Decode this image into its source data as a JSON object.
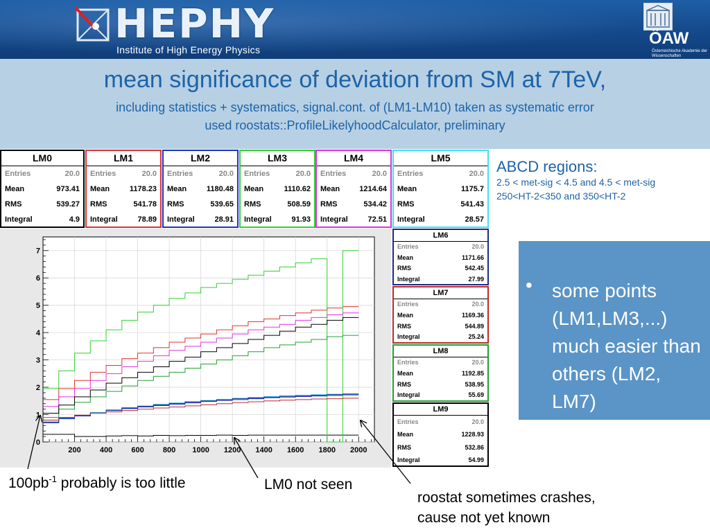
{
  "header": {
    "logo_text": "HEPHY",
    "logo_subtitle": "Institute of High Energy Physics",
    "oaw_text": "ÖAW",
    "oaw_subtitle": "Österreichische Akademie der Wissenschaften"
  },
  "title": "mean significance of deviation from SM at 7TeV,",
  "subtitle_line1": "including statistics + systematics, signal.cont. of (LM1-LM10) taken as systematic error",
  "subtitle_line2": "used roostats::ProfileLikelyhoodCalculator, preliminary",
  "stat_boxes": [
    {
      "name": "LM0",
      "color": "#000000",
      "entries": "20.0",
      "mean": "973.41",
      "rms": "539.27",
      "integral": "4.9"
    },
    {
      "name": "LM1",
      "color": "#e03030",
      "entries": "20.0",
      "mean": "1178.23",
      "rms": "541.78",
      "integral": "78.89"
    },
    {
      "name": "LM2",
      "color": "#2030c8",
      "entries": "20.0",
      "mean": "1180.48",
      "rms": "539.65",
      "integral": "28.91"
    },
    {
      "name": "LM3",
      "color": "#30d030",
      "entries": "20.0",
      "mean": "1110.62",
      "rms": "508.59",
      "integral": "91.93"
    },
    {
      "name": "LM4",
      "color": "#e030e0",
      "entries": "20.0",
      "mean": "1214.64",
      "rms": "534.42",
      "integral": "72.51"
    },
    {
      "name": "LM5",
      "color": "#40e0f0",
      "entries": "20.0",
      "mean": "1175.7",
      "rms": "541.43",
      "integral": "28.57"
    },
    {
      "name": "LM6",
      "color": "#1a2a8a",
      "entries": "20.0",
      "mean": "1171.66",
      "rms": "542.45",
      "integral": "27.99"
    },
    {
      "name": "LM7",
      "color": "#c02828",
      "entries": "20.0",
      "mean": "1169.36",
      "rms": "544.89",
      "integral": "25.24"
    },
    {
      "name": "LM8",
      "color": "#20a030",
      "entries": "20.0",
      "mean": "1192.85",
      "rms": "538.95",
      "integral": "55.69"
    },
    {
      "name": "LM9",
      "color": "#000000",
      "entries": "20.0",
      "mean": "1228.93",
      "rms": "532.86",
      "integral": "54.99"
    }
  ],
  "stat_labels": {
    "entries": "Entries",
    "mean": "Mean",
    "rms": "RMS",
    "integral": "Integral"
  },
  "abcd": {
    "title": "ABCD regions:",
    "line1": "2.5 < met-sig < 4.5 and  4.5 < met-sig",
    "line2": "250<HT-2<350 and 350<HT-2"
  },
  "bullet": {
    "dot": "•",
    "text": "some points (LM1,LM3,...) much easier than others (LM2, LM7)"
  },
  "notes": {
    "lumi_prefix": "100pb",
    "lumi_sup": "-1",
    "lumi_suffix": " probably is too little",
    "lm0": "LM0 not seen",
    "roostat_line1": "roostat  sometimes crashes,",
    "roostat_line2": "cause not yet known"
  },
  "chart_data": {
    "type": "line",
    "title": "",
    "xlabel": "",
    "ylabel": "",
    "xlim": [
      0,
      2100
    ],
    "ylim": [
      0,
      7.5
    ],
    "x_ticks": [
      200,
      400,
      600,
      800,
      1000,
      1200,
      1400,
      1600,
      1800,
      2000
    ],
    "y_ticks": [
      0,
      1,
      2,
      3,
      4,
      5,
      6,
      7
    ],
    "grid": true,
    "x_edges": [
      0,
      100,
      200,
      300,
      400,
      500,
      600,
      700,
      800,
      900,
      1000,
      1100,
      1200,
      1300,
      1400,
      1500,
      1600,
      1700,
      1800,
      1900,
      2000
    ],
    "series": [
      {
        "name": "LM0",
        "color": "#000000",
        "values": [
          0.28,
          0.28,
          0.2,
          0.2,
          0.22,
          0.23,
          0.22,
          0.24,
          0.23,
          0.24,
          0.24,
          0.25,
          0.24,
          0.25,
          0.25,
          0.25,
          0.25,
          0.25,
          0.25,
          0.25
        ]
      },
      {
        "name": "LM1",
        "color": "#e03030",
        "values": [
          1.55,
          1.95,
          2.25,
          2.55,
          2.8,
          3.05,
          3.25,
          3.45,
          3.65,
          3.8,
          3.95,
          4.1,
          4.25,
          4.4,
          4.5,
          4.62,
          4.72,
          4.82,
          4.9,
          4.95
        ]
      },
      {
        "name": "LM2",
        "color": "#2030c8",
        "values": [
          0.7,
          0.85,
          0.95,
          1.05,
          1.15,
          1.22,
          1.28,
          1.33,
          1.38,
          1.43,
          1.48,
          1.52,
          1.55,
          1.58,
          1.62,
          1.64,
          1.66,
          1.68,
          1.7,
          1.72
        ]
      },
      {
        "name": "LM3",
        "color": "#30d030",
        "values": [
          1.95,
          2.6,
          3.25,
          3.7,
          4.1,
          4.45,
          4.75,
          5.0,
          5.25,
          5.45,
          5.65,
          5.8,
          5.95,
          6.1,
          6.25,
          6.4,
          6.55,
          6.7,
          0,
          7.0
        ]
      },
      {
        "name": "LM4",
        "color": "#e030e0",
        "values": [
          1.3,
          1.65,
          1.95,
          2.25,
          2.5,
          2.75,
          2.95,
          3.15,
          3.35,
          3.5,
          3.65,
          3.8,
          3.95,
          4.1,
          4.2,
          4.3,
          4.45,
          4.55,
          4.65,
          4.72
        ]
      },
      {
        "name": "LM5",
        "color": "#40e0f0",
        "values": [
          0.75,
          0.88,
          0.98,
          1.08,
          1.18,
          1.26,
          1.32,
          1.38,
          1.43,
          1.48,
          1.52,
          1.56,
          1.6,
          1.63,
          1.66,
          1.69,
          1.71,
          1.73,
          1.75,
          1.76
        ]
      },
      {
        "name": "LM6",
        "color": "#1a2a8a",
        "values": [
          0.72,
          0.86,
          0.96,
          1.06,
          1.16,
          1.24,
          1.3,
          1.36,
          1.41,
          1.46,
          1.5,
          1.54,
          1.58,
          1.61,
          1.64,
          1.67,
          1.69,
          1.71,
          1.73,
          1.75
        ]
      },
      {
        "name": "LM7",
        "color": "#c02828",
        "values": [
          0.8,
          0.9,
          0.98,
          1.05,
          1.1,
          1.15,
          1.2,
          1.24,
          1.28,
          1.32,
          1.36,
          1.4,
          1.44,
          1.47,
          1.5,
          1.53,
          1.55,
          1.57,
          1.58,
          1.6
        ]
      },
      {
        "name": "LM8",
        "color": "#20a030",
        "values": [
          0.9,
          1.2,
          1.45,
          1.65,
          1.85,
          2.05,
          2.25,
          2.4,
          2.55,
          2.7,
          2.85,
          3.0,
          3.15,
          3.3,
          3.45,
          3.55,
          3.65,
          3.75,
          3.85,
          3.9
        ]
      },
      {
        "name": "LM9",
        "color": "#000000",
        "values": [
          1.05,
          1.35,
          1.65,
          1.9,
          2.15,
          2.35,
          2.55,
          2.75,
          2.95,
          3.1,
          3.3,
          3.45,
          3.6,
          3.75,
          3.9,
          4.05,
          4.2,
          4.3,
          4.45,
          4.55
        ]
      }
    ]
  }
}
